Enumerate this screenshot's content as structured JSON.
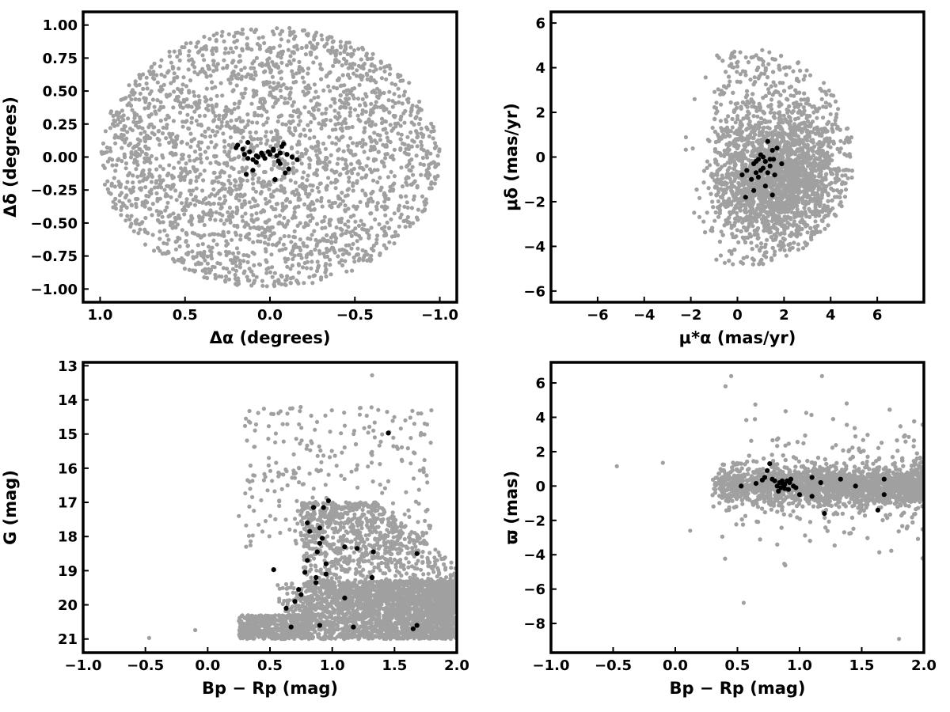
{
  "colors": {
    "field_stars": "#a0a0a0",
    "members": "#000000",
    "frame": "#000000",
    "background": "#ffffff"
  },
  "chart_data": [
    {
      "type": "scatter",
      "panel": "top-left",
      "xlabel": "Δα (degrees)",
      "ylabel": "Δδ (degrees)",
      "xlim": [
        1.1,
        -1.1
      ],
      "ylim": [
        -1.1,
        1.1
      ],
      "x_reversed": true,
      "xticks": [
        1.0,
        0.5,
        0.0,
        -0.5,
        -1.0
      ],
      "xtick_labels": [
        "1.0",
        "0.5",
        "0.0",
        "−0.5",
        "−1.0"
      ],
      "yticks": [
        1.0,
        0.75,
        0.5,
        0.25,
        0.0,
        -0.25,
        -0.5,
        -0.75,
        -1.0
      ],
      "ytick_labels": [
        "1.00",
        "0.75",
        "0.50",
        "0.25",
        "0.00",
        "−0.25",
        "−0.50",
        "−0.75",
        "−1.00"
      ],
      "grid": false,
      "field_distribution": "uniform disk, radius 1.0 deg centered at (0, 0)",
      "members": {
        "x": [
          0.2,
          0.19,
          0.16,
          0.15,
          0.13,
          0.12,
          0.1,
          0.08,
          0.05,
          0.04,
          0.03,
          0.01,
          0.0,
          -0.02,
          -0.04,
          -0.05,
          -0.06,
          -0.07,
          -0.08,
          -0.1,
          -0.13,
          -0.16,
          0.14,
          0.1,
          0.07,
          0.13,
          -0.03,
          -0.09,
          -0.02,
          0.08,
          -0.06,
          -0.11
        ],
        "y": [
          0.07,
          0.09,
          0.06,
          0.02,
          -0.01,
          0.04,
          -0.02,
          -0.04,
          0.03,
          0.01,
          -0.01,
          0.04,
          0.02,
          0.05,
          0.01,
          -0.03,
          0.03,
          0.08,
          0.1,
          0.02,
          0.0,
          -0.02,
          -0.13,
          -0.1,
          0.0,
          0.11,
          -0.17,
          -0.12,
          0.06,
          0.01,
          -0.05,
          -0.09
        ]
      }
    },
    {
      "type": "scatter",
      "panel": "top-right",
      "xlabel": "μ*α (mas/yr)",
      "ylabel": "μδ (mas/yr)",
      "xlim": [
        -8,
        8
      ],
      "ylim": [
        -6.5,
        6.5
      ],
      "xticks": [
        -6,
        -4,
        -2,
        0,
        2,
        4,
        6
      ],
      "xtick_labels": [
        "−6",
        "−4",
        "−2",
        "0",
        "2",
        "4",
        "6"
      ],
      "yticks": [
        -6,
        -4,
        -2,
        0,
        2,
        4,
        6
      ],
      "ytick_labels": [
        "−6",
        "−4",
        "−2",
        "0",
        "2",
        "4",
        "6"
      ],
      "grid": false,
      "field_distribution": "clustered near (1.5, -0.8), spread approx. -5 to 5 in both axes",
      "members": {
        "x": [
          0.2,
          0.4,
          0.6,
          0.7,
          0.8,
          0.9,
          1.0,
          1.1,
          1.2,
          1.3,
          1.4,
          1.5,
          1.6,
          1.7,
          1.9,
          0.7,
          1.2,
          1.5,
          0.35,
          1.4,
          0.9,
          1.0,
          1.3,
          0.8,
          1.55,
          1.1
        ],
        "y": [
          -0.8,
          -0.6,
          -1.0,
          -0.3,
          -0.7,
          -0.1,
          0.1,
          -0.5,
          -0.2,
          0.7,
          -0.4,
          0.3,
          -0.8,
          0.4,
          -0.3,
          -1.5,
          -1.3,
          -1.7,
          -1.8,
          -0.1,
          -0.9,
          -0.6,
          -0.7,
          -0.2,
          -0.1,
          0.0
        ]
      }
    },
    {
      "type": "scatter",
      "panel": "bottom-left",
      "xlabel": "Bp − Rp (mag)",
      "ylabel": "G (mag)",
      "xlim": [
        -1.0,
        2.0
      ],
      "ylim": [
        21.4,
        12.9
      ],
      "y_reversed": true,
      "xticks": [
        -1.0,
        -0.5,
        0.0,
        0.5,
        1.0,
        1.5,
        2.0
      ],
      "xtick_labels": [
        "−1.0",
        "−0.5",
        "0.0",
        "0.5",
        "1.0",
        "1.5",
        "2.0"
      ],
      "yticks": [
        21,
        20,
        19,
        18,
        17,
        16,
        15,
        14,
        13
      ],
      "ytick_labels": [
        "21",
        "20",
        "19",
        "18",
        "17",
        "16",
        "15",
        "14",
        "13"
      ],
      "grid": false,
      "field_distribution": "color-magnitude diagram; dense band G 17-21, Bp-Rp 0.3-2.0, sparse bright stars",
      "members": {
        "x": [
          0.53,
          0.63,
          0.67,
          0.7,
          0.73,
          0.75,
          0.78,
          0.8,
          0.8,
          0.82,
          0.85,
          0.87,
          0.87,
          0.88,
          0.9,
          0.9,
          0.92,
          0.93,
          0.95,
          0.95,
          0.97,
          1.1,
          1.1,
          1.17,
          1.2,
          1.32,
          1.33,
          1.45,
          1.65,
          1.68,
          1.68,
          0.9
        ],
        "y": [
          18.97,
          20.1,
          20.65,
          19.9,
          19.55,
          19.7,
          19.05,
          18.7,
          17.6,
          17.85,
          17.15,
          19.2,
          19.35,
          18.45,
          18.2,
          17.75,
          18.05,
          17.15,
          18.8,
          19.1,
          16.95,
          19.8,
          18.3,
          20.65,
          18.35,
          19.2,
          18.45,
          14.97,
          20.7,
          20.6,
          18.5,
          20.6
        ]
      }
    },
    {
      "type": "scatter",
      "panel": "bottom-right",
      "xlabel": "Bp − Rp (mag)",
      "ylabel": "ϖ (mas)",
      "xlim": [
        -1.0,
        2.0
      ],
      "ylim": [
        -9.7,
        7.2
      ],
      "xticks": [
        -1.0,
        -0.5,
        0.0,
        0.5,
        1.0,
        1.5,
        2.0
      ],
      "xtick_labels": [
        "−1.0",
        "−0.5",
        "0.0",
        "0.5",
        "1.0",
        "1.5",
        "2.0"
      ],
      "yticks": [
        -8,
        -6,
        -4,
        -2,
        0,
        2,
        4,
        6
      ],
      "ytick_labels": [
        "−8",
        "−6",
        "−4",
        "−2",
        "0",
        "2",
        "4",
        "6"
      ],
      "grid": false,
      "field_distribution": "dense band around ϖ = 0 for Bp-Rp 0.3-2.0, scatter up to ±6",
      "members": {
        "x": [
          0.53,
          0.65,
          0.7,
          0.72,
          0.74,
          0.76,
          0.78,
          0.8,
          0.82,
          0.84,
          0.85,
          0.86,
          0.87,
          0.88,
          0.9,
          0.91,
          0.93,
          0.95,
          0.97,
          1.0,
          1.1,
          1.1,
          1.17,
          1.2,
          1.33,
          1.45,
          1.63,
          1.68,
          1.68,
          0.83,
          0.88,
          0.92
        ],
        "y": [
          0.0,
          0.15,
          0.35,
          0.5,
          0.9,
          1.3,
          0.4,
          0.3,
          0.0,
          0.2,
          -0.1,
          0.3,
          0.05,
          0.1,
          0.3,
          -0.2,
          0.4,
          0.0,
          -0.1,
          -0.5,
          0.5,
          -0.6,
          0.2,
          -1.6,
          0.4,
          0.0,
          -1.4,
          0.4,
          -0.5,
          -0.3,
          -0.15,
          0.2
        ]
      }
    }
  ]
}
